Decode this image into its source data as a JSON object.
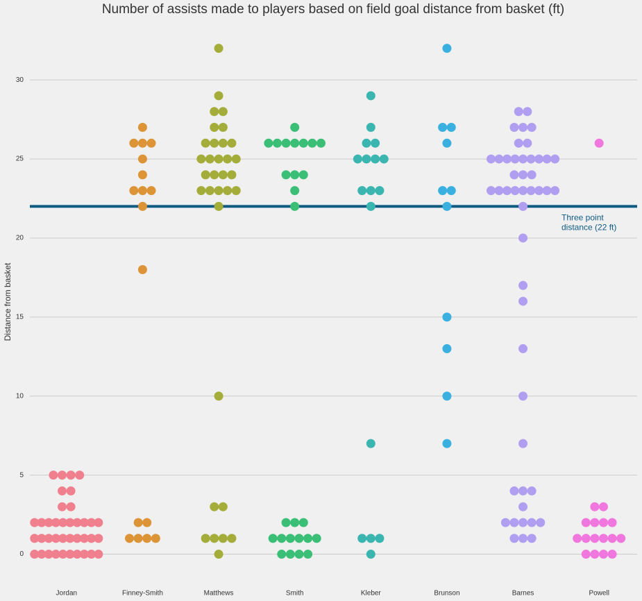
{
  "chart_data": {
    "type": "swarm",
    "title": "Number of assists made to players based on field goal distance from basket (ft)",
    "y_label": "Distance from basket",
    "categories": [
      "Jordan",
      "Finney-Smith",
      "Matthews",
      "Smith",
      "Kleber",
      "Brunson",
      "Barnes",
      "Powell"
    ],
    "colors": [
      "#f0808e",
      "#dc9437",
      "#a4ad3a",
      "#3bbf77",
      "#3ab5b0",
      "#3ab0e0",
      "#b09ef0",
      "#f077dd"
    ],
    "values": [
      [
        5,
        5,
        5,
        5,
        4,
        4,
        3,
        3,
        2,
        2,
        2,
        2,
        2,
        2,
        2,
        2,
        2,
        2,
        1,
        1,
        1,
        1,
        1,
        1,
        1,
        1,
        1,
        1,
        0,
        0,
        0,
        0,
        0,
        0,
        0,
        0,
        0,
        0
      ],
      [
        27,
        26,
        26,
        26,
        25,
        24,
        23,
        23,
        23,
        22,
        18,
        2,
        2,
        1,
        1,
        1,
        1
      ],
      [
        32,
        29,
        28,
        28,
        27,
        27,
        26,
        26,
        26,
        26,
        25,
        25,
        25,
        25,
        25,
        24,
        24,
        24,
        24,
        23,
        23,
        23,
        23,
        23,
        22,
        10,
        3,
        3,
        1,
        1,
        1,
        1,
        0
      ],
      [
        27,
        26,
        26,
        26,
        26,
        26,
        26,
        26,
        24,
        24,
        24,
        23,
        22,
        2,
        2,
        2,
        1,
        1,
        1,
        1,
        1,
        1,
        0,
        0,
        0,
        0
      ],
      [
        29,
        27,
        26,
        26,
        25,
        25,
        25,
        25,
        23,
        23,
        23,
        22,
        7,
        1,
        1,
        1,
        0
      ],
      [
        32,
        27,
        27,
        26,
        23,
        23,
        22,
        15,
        13,
        10,
        7
      ],
      [
        28,
        28,
        27,
        27,
        27,
        26,
        26,
        25,
        25,
        25,
        25,
        25,
        25,
        25,
        25,
        25,
        24,
        24,
        24,
        23,
        23,
        23,
        23,
        23,
        23,
        23,
        23,
        23,
        22,
        20,
        17,
        16,
        13,
        10,
        7,
        4,
        4,
        4,
        3,
        2,
        2,
        2,
        2,
        2,
        1,
        1,
        1
      ],
      [
        26,
        3,
        3,
        2,
        2,
        2,
        2,
        1,
        1,
        1,
        1,
        1,
        1,
        0,
        0,
        0,
        0
      ]
    ],
    "ylim": [
      -1.6,
      33.3
    ],
    "yticks": [
      0,
      5,
      10,
      15,
      20,
      25,
      30
    ],
    "grid": true,
    "reference_line": {
      "value": 22,
      "color": "#0d5a83",
      "label": [
        "Three point",
        "distance (22 ft)"
      ]
    }
  }
}
